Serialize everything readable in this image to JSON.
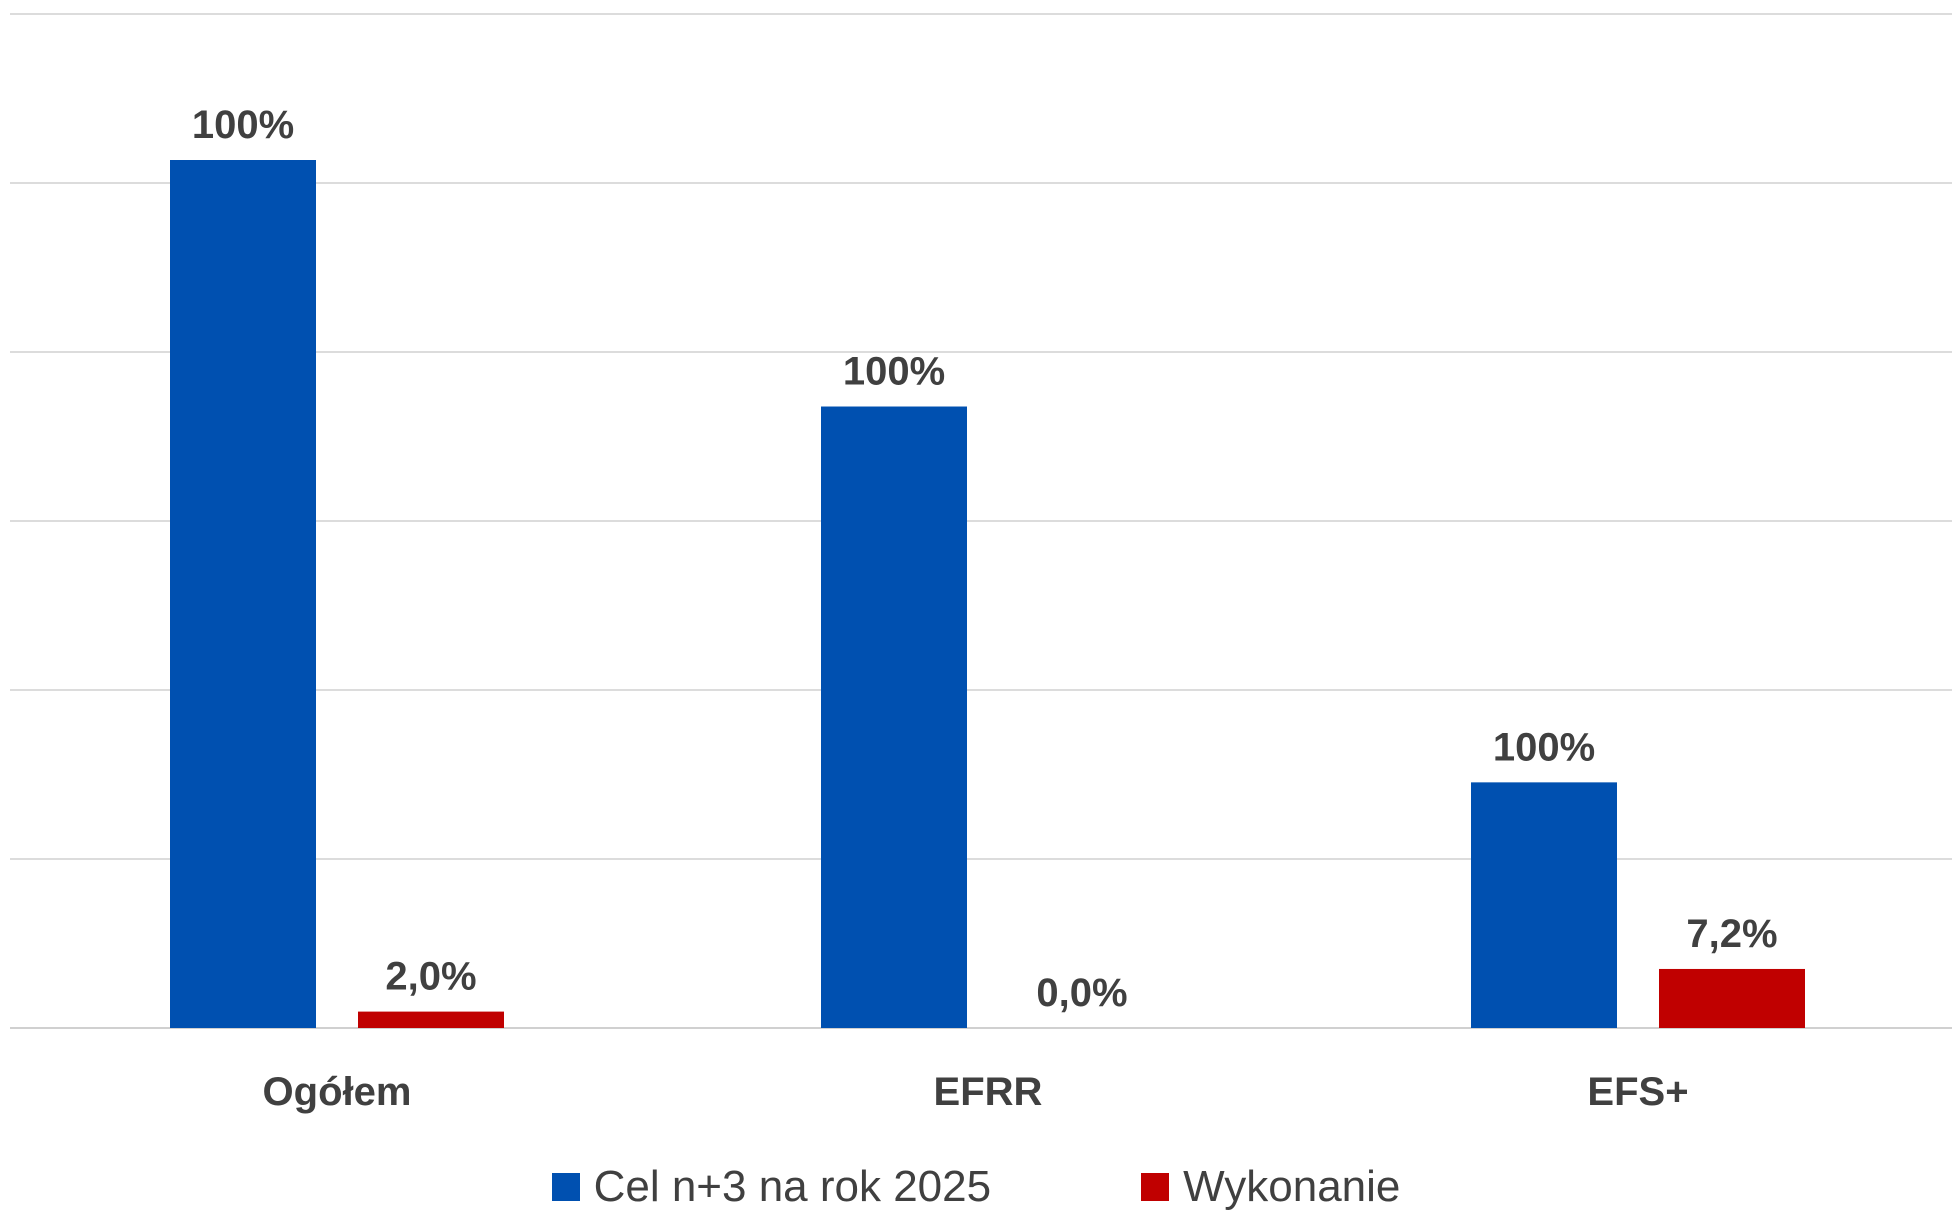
{
  "chart_data": {
    "type": "bar",
    "categories": [
      "Ogółem",
      "EFRR",
      "EFS+"
    ],
    "series": [
      {
        "name": "Cel n+3 na rok 2025",
        "color": "#0050B0",
        "relative_height": [
          1.0,
          0.716,
          0.283
        ],
        "labels": [
          "100%",
          "100%",
          "100%"
        ]
      },
      {
        "name": "Wykonanie",
        "color": "#C00000",
        "values": [
          2.0,
          0.0,
          7.2
        ],
        "labels": [
          "2,0%",
          "0,0%",
          "7,2%"
        ]
      }
    ],
    "grid": true,
    "legend_position": "bottom"
  }
}
